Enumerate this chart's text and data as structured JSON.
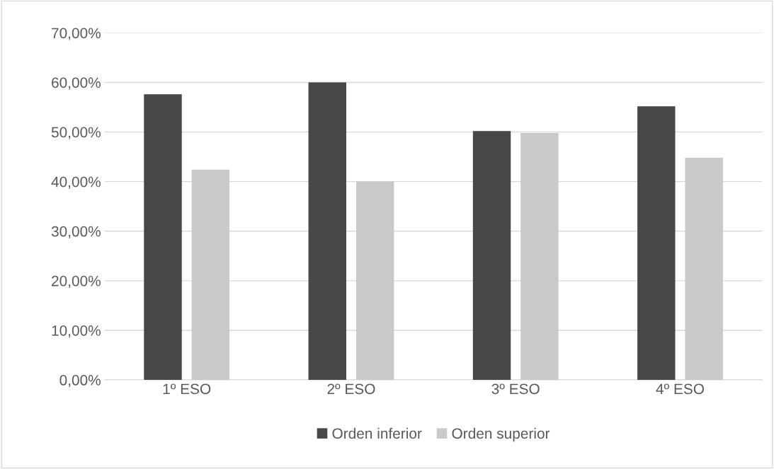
{
  "chart_data": {
    "type": "bar",
    "categories": [
      "1º ESO",
      "2º ESO",
      "3º ESO",
      "4º ESO"
    ],
    "series": [
      {
        "name": "Orden inferior",
        "color": "#474747",
        "values": [
          57.6,
          60.0,
          50.2,
          55.2
        ]
      },
      {
        "name": "Orden superior",
        "color": "#c9c9c9",
        "values": [
          42.4,
          40.0,
          49.8,
          44.8
        ]
      }
    ],
    "ylim": [
      0,
      70
    ],
    "yticks": [
      {
        "value": 0,
        "label": "0,00%"
      },
      {
        "value": 10,
        "label": "10,00%"
      },
      {
        "value": 20,
        "label": "20,00%"
      },
      {
        "value": 30,
        "label": "30,00%"
      },
      {
        "value": 40,
        "label": "40,00%"
      },
      {
        "value": 50,
        "label": "50,00%"
      },
      {
        "value": 60,
        "label": "60,00%"
      },
      {
        "value": 70,
        "label": "70,00%"
      }
    ],
    "grid": "y",
    "legend": "bottom"
  }
}
